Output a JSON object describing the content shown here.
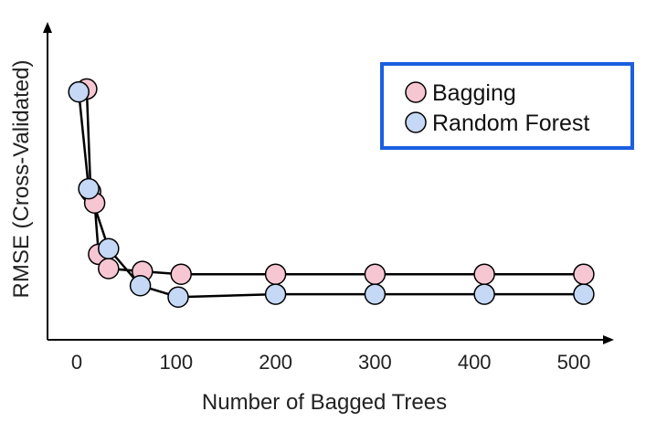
{
  "chart_data": {
    "type": "line",
    "xlabel": "Number of Bagged Trees",
    "ylabel": "RMSE (Cross-Validated)",
    "xlim": [
      -20,
      540
    ],
    "ylim": [
      0,
      1
    ],
    "xticks": [
      "0",
      "100",
      "200",
      "300",
      "400",
      "500"
    ],
    "yticks": [],
    "grid": false,
    "legend_position": "top-right",
    "series": [
      {
        "name": "Bagging",
        "color": "#f7c6d3",
        "x": [
          10,
          14,
          18,
          22,
          32,
          66,
          105,
          200,
          300,
          410,
          510
        ],
        "y": [
          0.88,
          0.52,
          0.48,
          0.3,
          0.25,
          0.24,
          0.23,
          0.23,
          0.23,
          0.23,
          0.23
        ]
      },
      {
        "name": "Random Forest",
        "color": "#c5d8f5",
        "x": [
          2,
          12,
          32,
          64,
          102,
          200,
          300,
          410,
          510
        ],
        "y": [
          0.87,
          0.53,
          0.32,
          0.19,
          0.15,
          0.16,
          0.16,
          0.16,
          0.16
        ]
      }
    ]
  }
}
